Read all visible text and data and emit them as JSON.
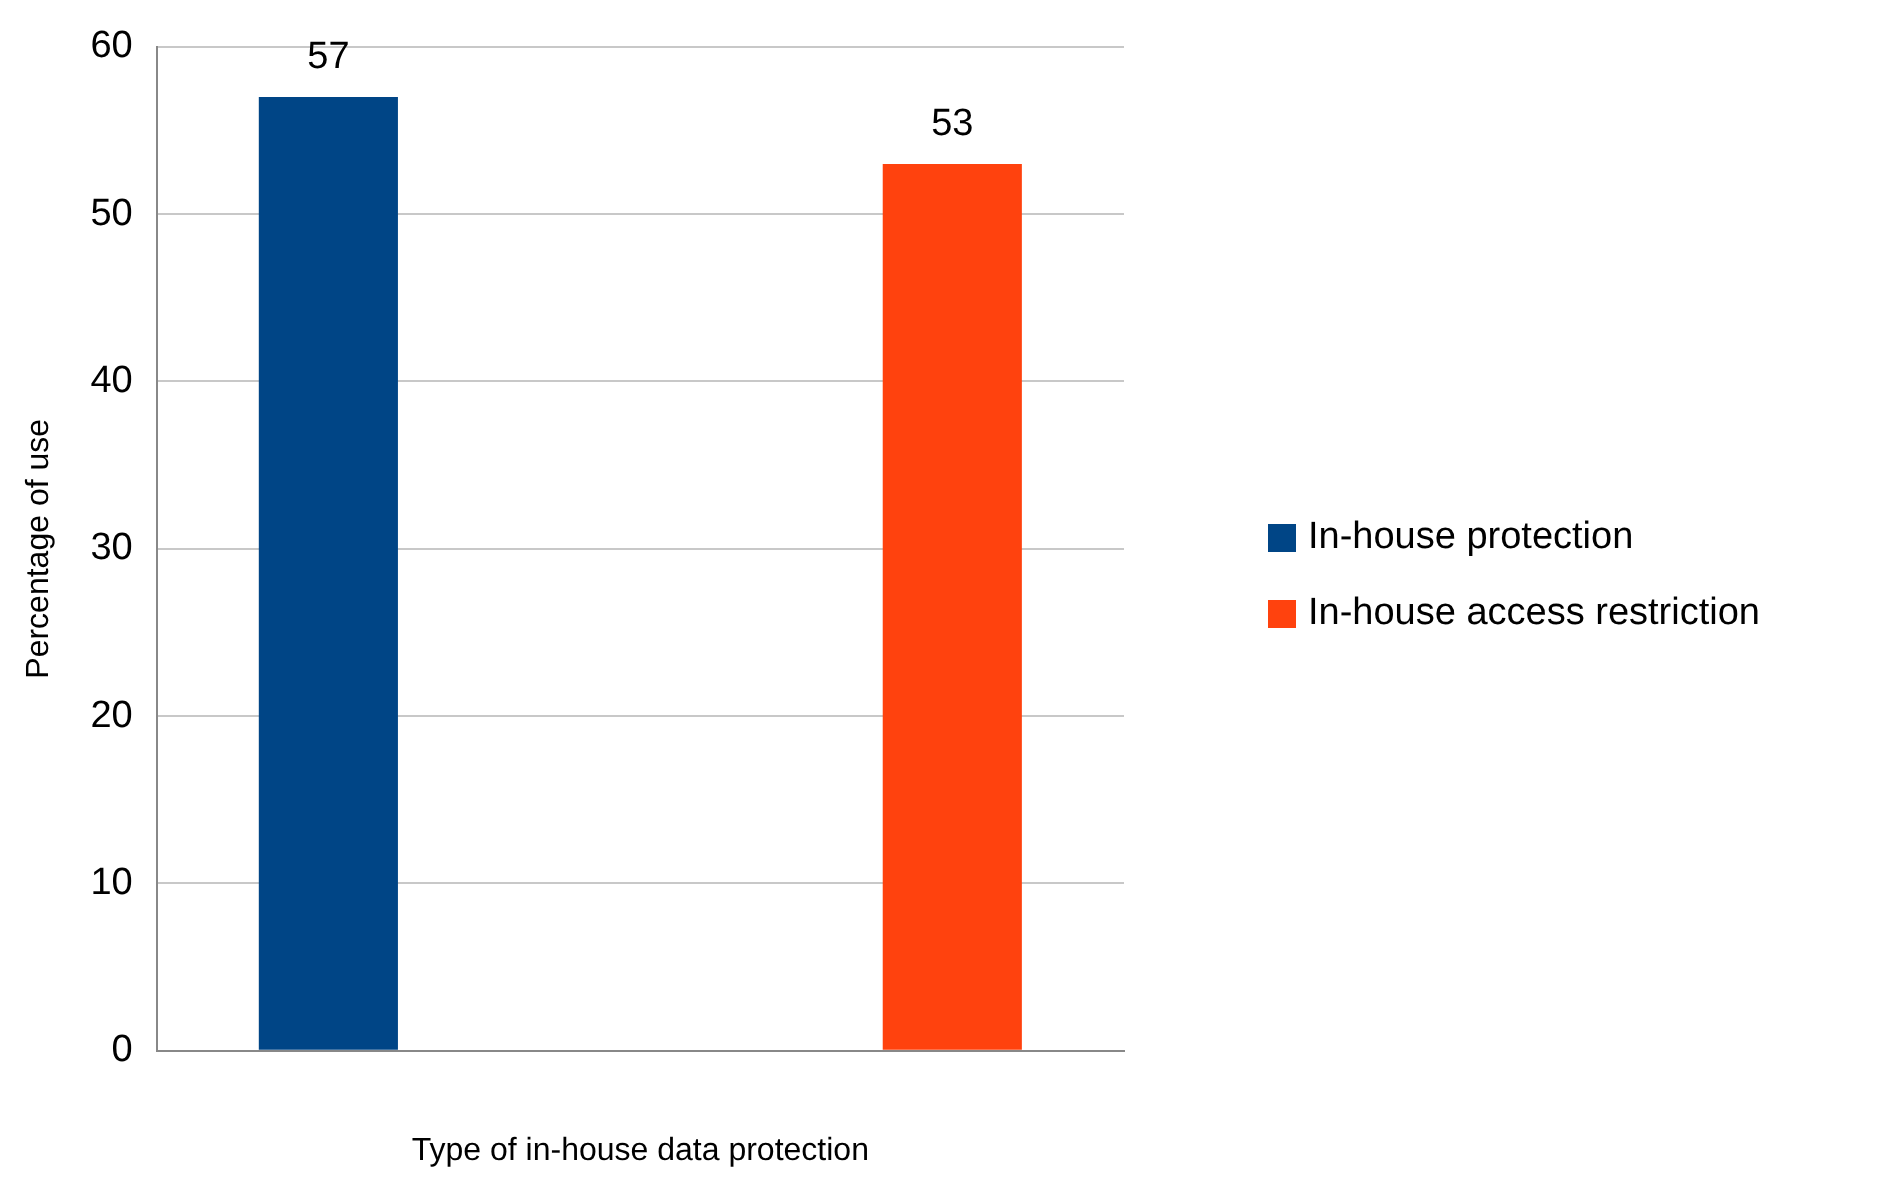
{
  "chart_data": {
    "type": "bar",
    "xlabel": "Type of in-house data protection",
    "ylabel": "Percentage of use",
    "categories": [
      null
    ],
    "series": [
      {
        "name": "In-house protection",
        "color": "#004586",
        "values": [
          57
        ]
      },
      {
        "name": "In-house access restriction",
        "color": "#ff420e",
        "values": [
          53
        ]
      }
    ],
    "ylim": [
      0,
      60
    ],
    "yticks": [
      0,
      10,
      20,
      30,
      40,
      50,
      60
    ],
    "grid": "y",
    "legend": "right",
    "data_labels": true
  }
}
